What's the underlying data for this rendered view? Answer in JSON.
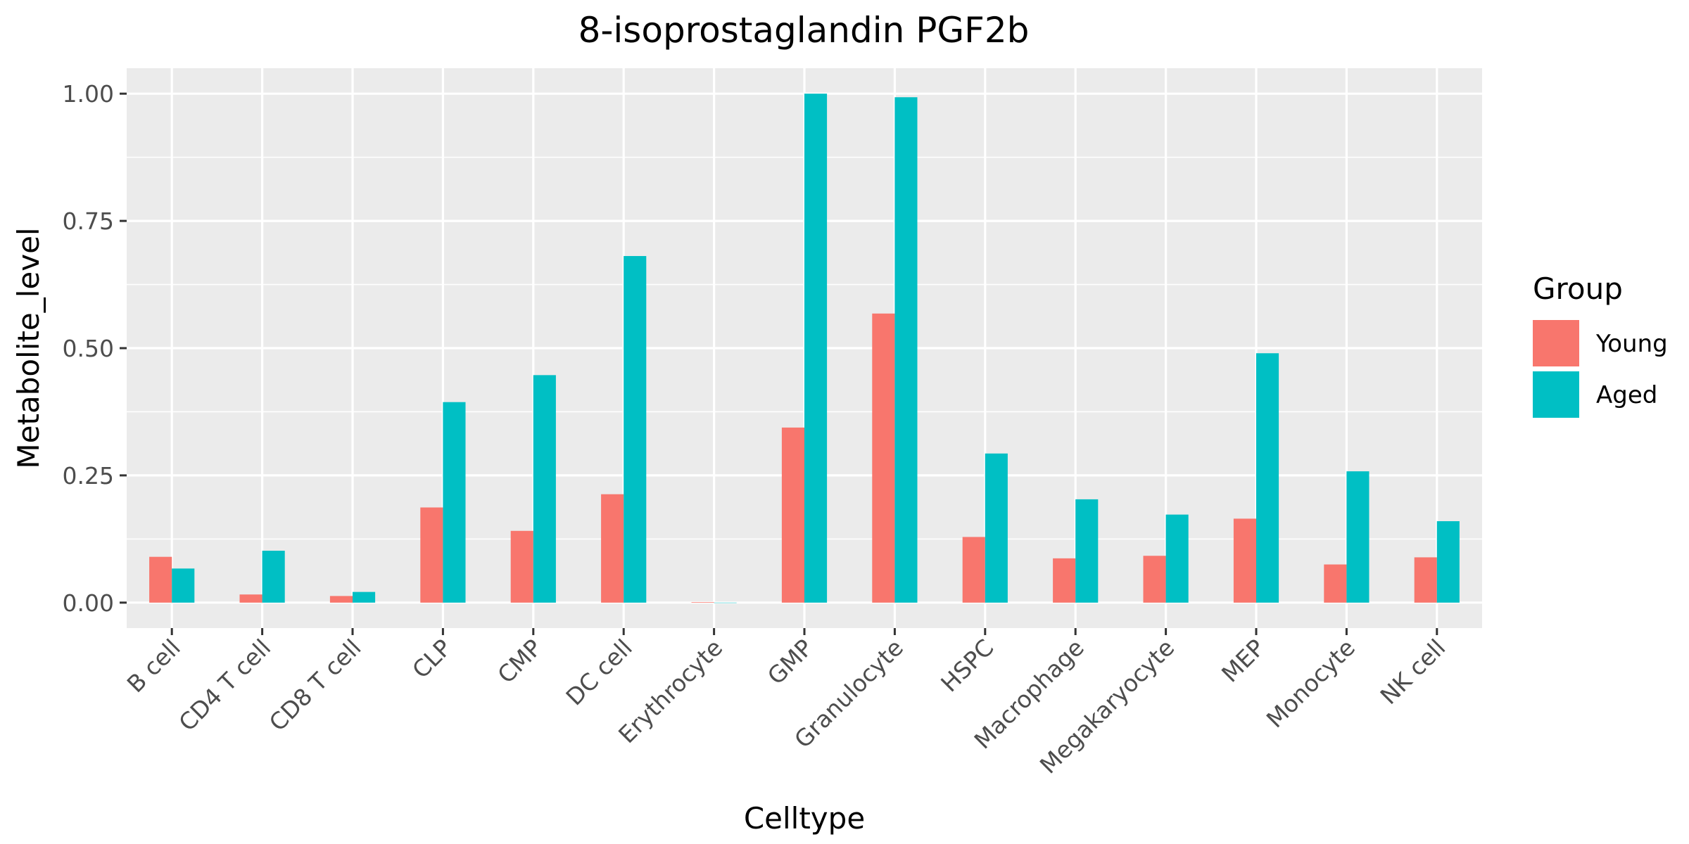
{
  "chart_data": {
    "type": "bar",
    "title": "8-isoprostaglandin PGF2b",
    "xlabel": "Celltype",
    "ylabel": "Metabolite_level",
    "categories": [
      "B cell",
      "CD4 T cell",
      "CD8 T cell",
      "CLP",
      "CMP",
      "DC cell",
      "Erythrocyte",
      "GMP",
      "Granulocyte",
      "HSPC",
      "Macrophage",
      "Megakaryocyte",
      "MEP",
      "Monocyte",
      "NK cell"
    ],
    "series": [
      {
        "name": "Young",
        "color": "#F8766D",
        "values": [
          0.09,
          0.016,
          0.013,
          0.187,
          0.141,
          0.213,
          0.001,
          0.344,
          0.568,
          0.129,
          0.087,
          0.092,
          0.165,
          0.075,
          0.089
        ]
      },
      {
        "name": "Aged",
        "color": "#00BFC4",
        "values": [
          0.067,
          0.102,
          0.021,
          0.394,
          0.447,
          0.681,
          0.0,
          1.0,
          0.993,
          0.293,
          0.203,
          0.173,
          0.49,
          0.258,
          0.16
        ]
      }
    ],
    "ylim": [
      -0.05,
      1.05
    ],
    "yticks": [
      0.0,
      0.25,
      0.5,
      0.75,
      1.0
    ],
    "ytick_labels": [
      "0.00",
      "0.25",
      "0.50",
      "0.75",
      "1.00"
    ],
    "legend": {
      "title": "Group",
      "placement": "right"
    },
    "grid": true
  }
}
